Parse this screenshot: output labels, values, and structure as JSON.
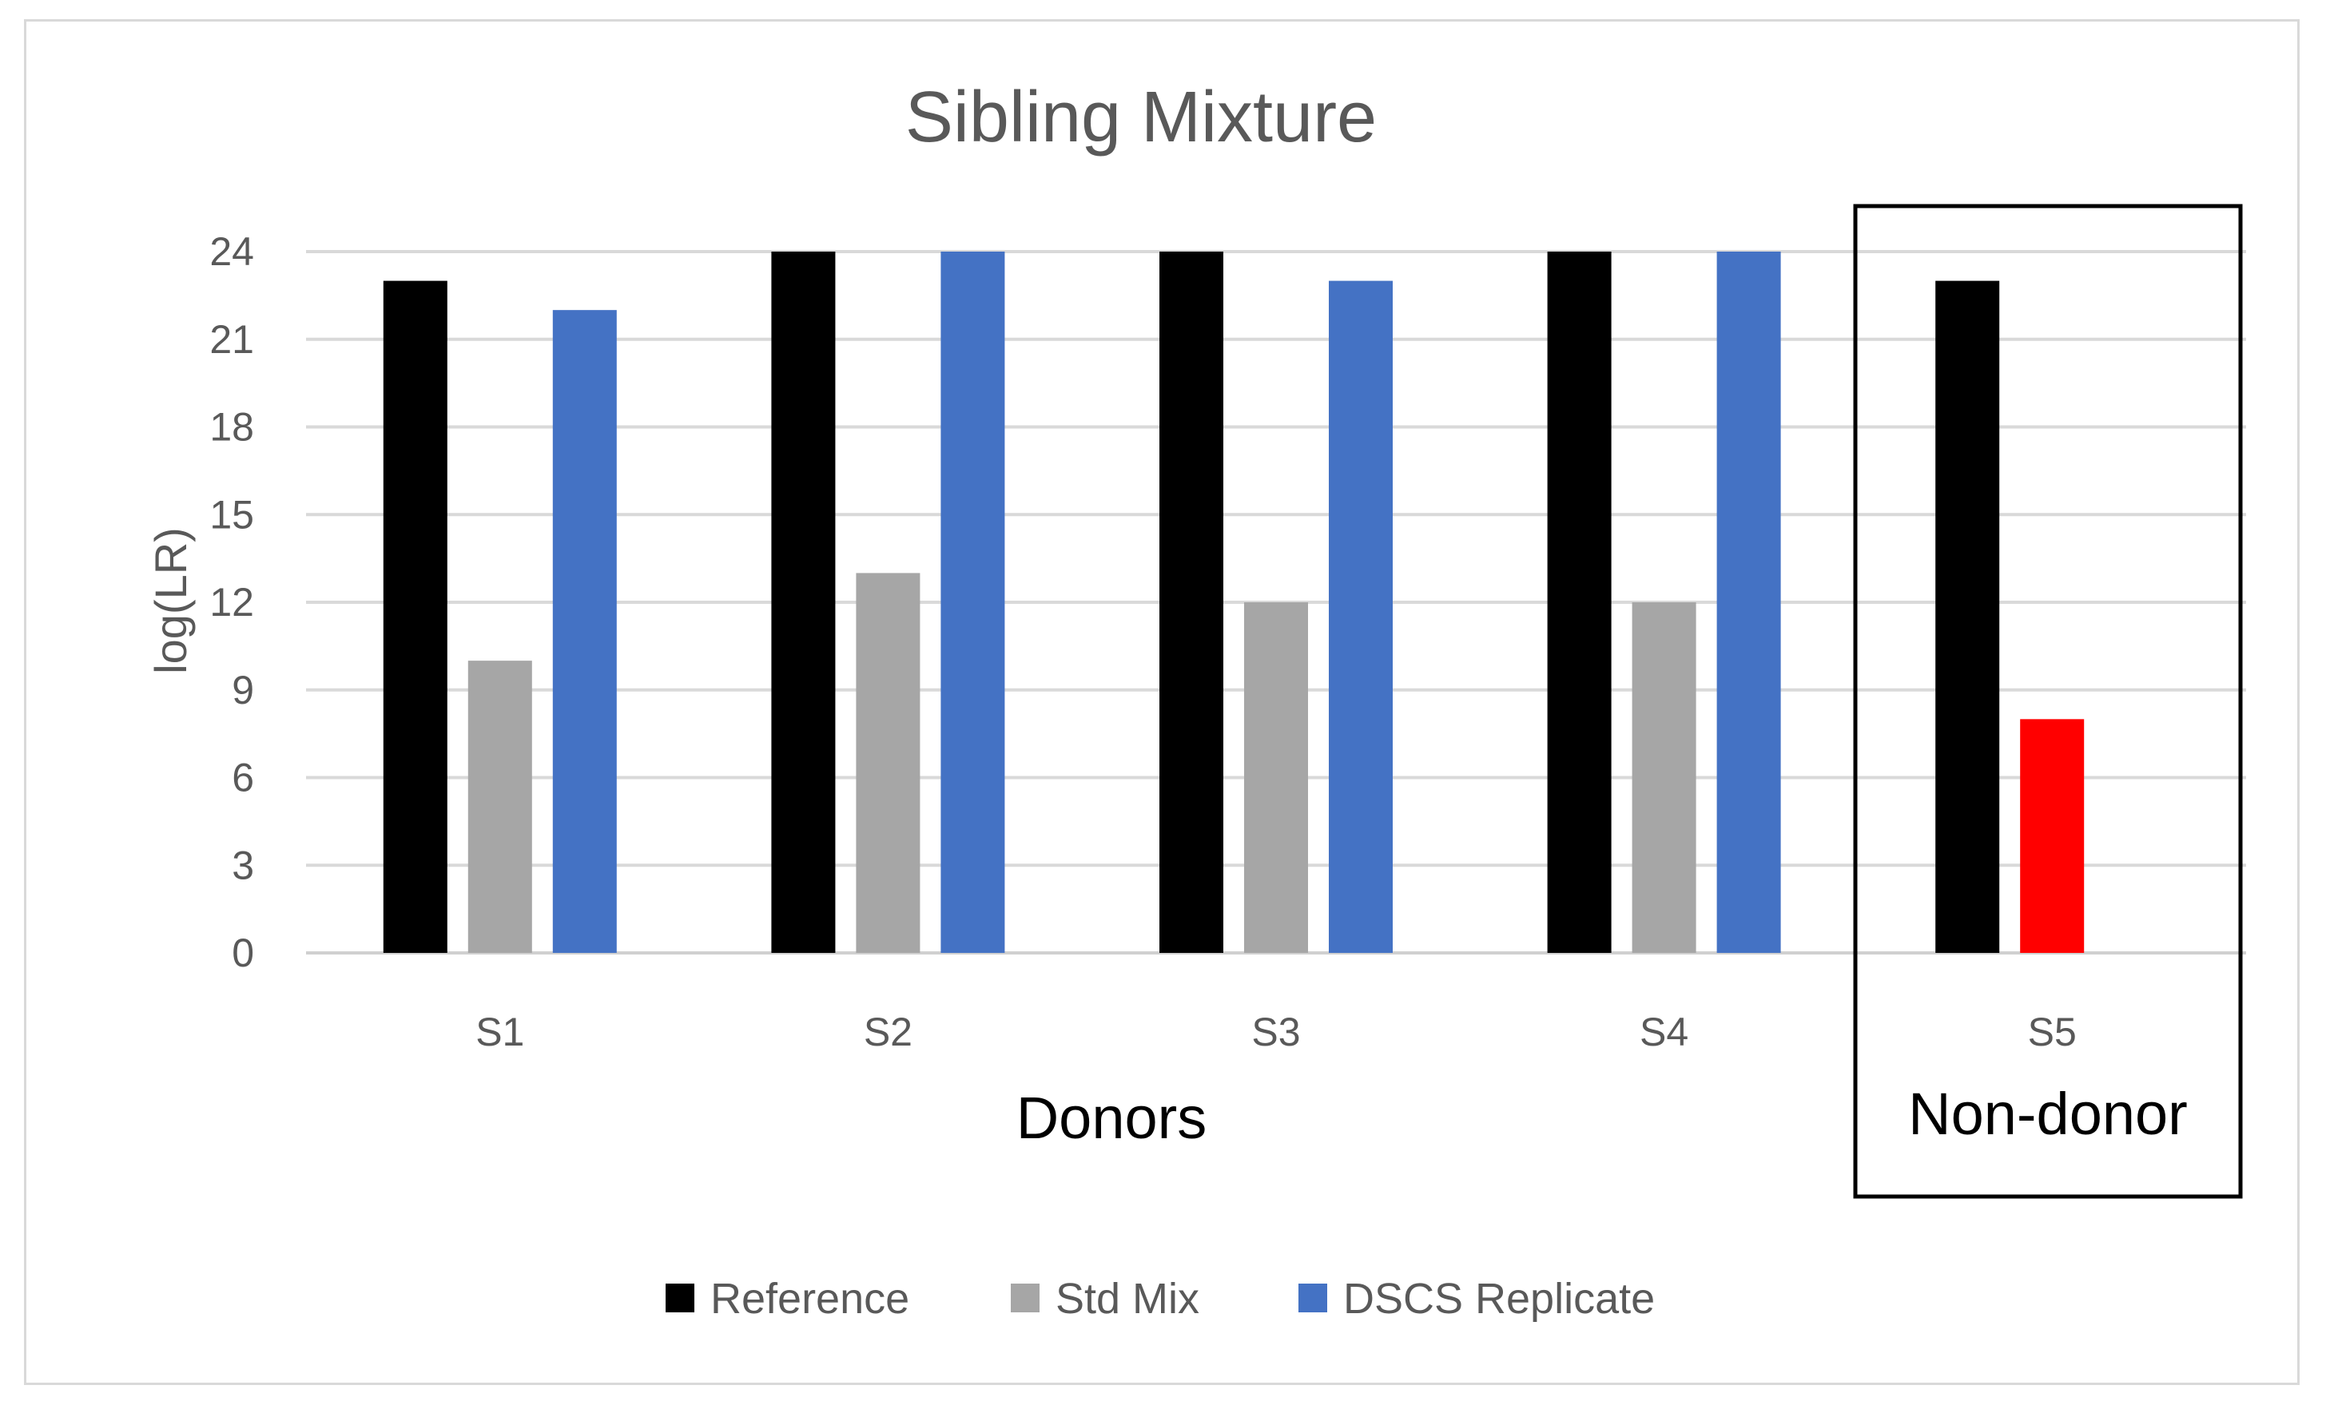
{
  "chart_data": {
    "type": "bar",
    "title": "Sibling Mixture",
    "xlabel": "Donors",
    "ylabel": "log(LR)",
    "ylim": [
      0,
      24
    ],
    "yticks": [
      0,
      3,
      6,
      9,
      12,
      15,
      18,
      21,
      24
    ],
    "grid": true,
    "categories": [
      "S1",
      "S2",
      "S3",
      "S4",
      "S5"
    ],
    "series": [
      {
        "name": "Reference",
        "color": "#000000",
        "values": [
          23,
          24,
          24,
          24,
          23
        ]
      },
      {
        "name": "Std Mix",
        "color": "#a6a6a6",
        "values": [
          10,
          13,
          12,
          12,
          8
        ],
        "point_colors": [
          null,
          null,
          null,
          null,
          "#ff0000"
        ]
      },
      {
        "name": "DSCS Replicate",
        "color": "#4472c4",
        "values": [
          22,
          24,
          23,
          24,
          null
        ]
      }
    ],
    "annotations": [
      {
        "text": "Non-donor",
        "category": "S5",
        "boxed": true
      }
    ],
    "legend": {
      "position": "bottom"
    }
  }
}
